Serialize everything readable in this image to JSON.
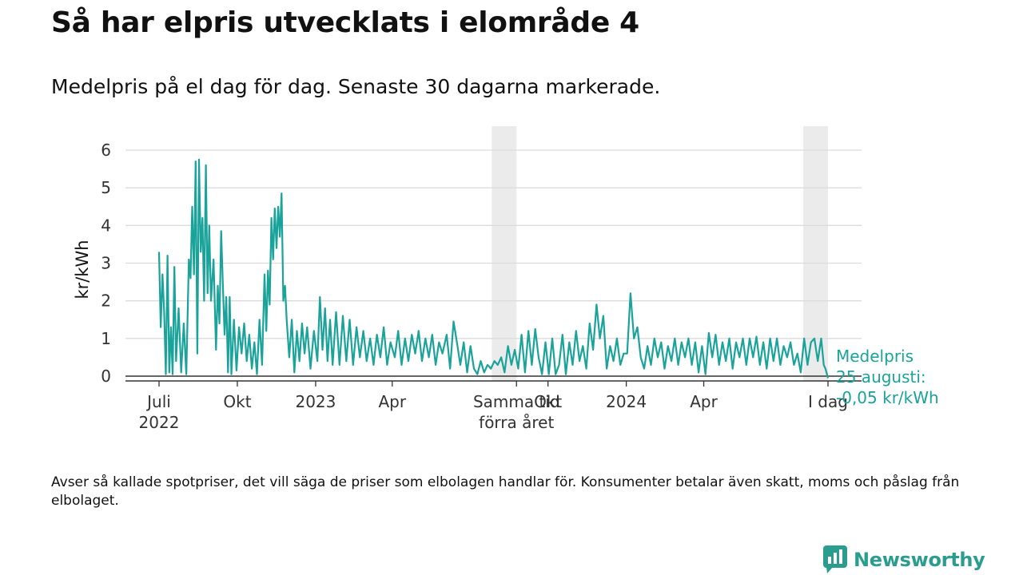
{
  "title": "Så har elpris utvecklats i elområde 4",
  "subtitle": "Medelpris på el dag för dag.  Senaste 30 dagarna markerade.",
  "footnote": "Avser så kallade spotpriser, det vill säga de priser som elbolagen handlar för. Konsumenter betalar även skatt, moms och påslag från elbolaget.",
  "brand": {
    "name": "Newsworthy",
    "color": "#2a9d8f"
  },
  "chart_data": {
    "type": "line",
    "ylabel": "kr/kWh",
    "ylim": [
      0,
      6
    ],
    "yticks": [
      0,
      1,
      2,
      3,
      4,
      5,
      6
    ],
    "grid": true,
    "line_color": "#1aa39a",
    "highlight_color": "#ebebeb",
    "xticks": [
      {
        "x": "2022-07-01",
        "label": "Juli\n2022"
      },
      {
        "x": "2022-10-01",
        "label": "Okt"
      },
      {
        "x": "2023-01-01",
        "label": "2023"
      },
      {
        "x": "2023-04-01",
        "label": "Apr"
      },
      {
        "x": "2023-08-25",
        "label": "Samma tid\nförra året"
      },
      {
        "x": "2023-10-01",
        "label": "Okt"
      },
      {
        "x": "2024-01-01",
        "label": "2024"
      },
      {
        "x": "2024-04-01",
        "label": "Apr"
      },
      {
        "x": "2024-08-25",
        "label": "I dag"
      }
    ],
    "highlights": [
      {
        "from": "2023-07-27",
        "to": "2023-08-25"
      },
      {
        "from": "2024-07-27",
        "to": "2024-08-25"
      }
    ],
    "annotation": {
      "lines": [
        "Medelpris",
        "25 augusti:",
        "-0,05 kr/kWh"
      ],
      "x": "2024-08-25",
      "y": -0.05
    },
    "series": [
      {
        "points": [
          [
            "2022-07-01",
            3.3
          ],
          [
            "2022-07-03",
            1.3
          ],
          [
            "2022-07-05",
            2.7
          ],
          [
            "2022-07-07",
            1.7
          ],
          [
            "2022-07-09",
            0.05
          ],
          [
            "2022-07-11",
            3.2
          ],
          [
            "2022-07-13",
            0.1
          ],
          [
            "2022-07-15",
            1.3
          ],
          [
            "2022-07-17",
            0.05
          ],
          [
            "2022-07-19",
            2.9
          ],
          [
            "2022-07-21",
            0.4
          ],
          [
            "2022-07-24",
            1.8
          ],
          [
            "2022-07-27",
            0.1
          ],
          [
            "2022-07-30",
            1.4
          ],
          [
            "2022-08-02",
            0.05
          ],
          [
            "2022-08-05",
            3.1
          ],
          [
            "2022-08-07",
            2.6
          ],
          [
            "2022-08-09",
            4.5
          ],
          [
            "2022-08-11",
            2.7
          ],
          [
            "2022-08-13",
            5.7
          ],
          [
            "2022-08-15",
            0.6
          ],
          [
            "2022-08-17",
            5.75
          ],
          [
            "2022-08-19",
            3.3
          ],
          [
            "2022-08-21",
            4.2
          ],
          [
            "2022-08-23",
            2.0
          ],
          [
            "2022-08-25",
            5.6
          ],
          [
            "2022-08-27",
            2.2
          ],
          [
            "2022-08-29",
            4.0
          ],
          [
            "2022-08-31",
            2.0
          ],
          [
            "2022-09-03",
            3.1
          ],
          [
            "2022-09-06",
            0.7
          ],
          [
            "2022-09-08",
            2.4
          ],
          [
            "2022-09-10",
            1.4
          ],
          [
            "2022-09-12",
            3.85
          ],
          [
            "2022-09-14",
            2.4
          ],
          [
            "2022-09-16",
            1.1
          ],
          [
            "2022-09-18",
            2.1
          ],
          [
            "2022-09-20",
            0.1
          ],
          [
            "2022-09-22",
            2.1
          ],
          [
            "2022-09-24",
            0.05
          ],
          [
            "2022-09-27",
            1.5
          ],
          [
            "2022-09-30",
            0.15
          ],
          [
            "2022-10-03",
            1.3
          ],
          [
            "2022-10-06",
            0.6
          ],
          [
            "2022-10-09",
            1.4
          ],
          [
            "2022-10-12",
            0.4
          ],
          [
            "2022-10-15",
            1.1
          ],
          [
            "2022-10-18",
            0.2
          ],
          [
            "2022-10-21",
            0.9
          ],
          [
            "2022-10-24",
            0.05
          ],
          [
            "2022-10-27",
            1.5
          ],
          [
            "2022-10-30",
            0.3
          ],
          [
            "2022-11-02",
            2.7
          ],
          [
            "2022-11-04",
            1.2
          ],
          [
            "2022-11-06",
            2.8
          ],
          [
            "2022-11-08",
            1.9
          ],
          [
            "2022-11-10",
            4.2
          ],
          [
            "2022-11-12",
            3.1
          ],
          [
            "2022-11-14",
            4.45
          ],
          [
            "2022-11-16",
            3.4
          ],
          [
            "2022-11-18",
            4.5
          ],
          [
            "2022-11-20",
            3.7
          ],
          [
            "2022-11-22",
            4.85
          ],
          [
            "2022-11-24",
            2.0
          ],
          [
            "2022-11-26",
            2.4
          ],
          [
            "2022-11-28",
            1.5
          ],
          [
            "2022-12-01",
            0.5
          ],
          [
            "2022-12-04",
            1.5
          ],
          [
            "2022-12-07",
            0.1
          ],
          [
            "2022-12-10",
            1.2
          ],
          [
            "2022-12-13",
            0.4
          ],
          [
            "2022-12-16",
            1.4
          ],
          [
            "2022-12-19",
            0.6
          ],
          [
            "2022-12-22",
            1.3
          ],
          [
            "2022-12-26",
            0.2
          ],
          [
            "2022-12-30",
            1.2
          ],
          [
            "2023-01-03",
            0.4
          ],
          [
            "2023-01-06",
            2.1
          ],
          [
            "2023-01-09",
            0.7
          ],
          [
            "2023-01-12",
            1.8
          ],
          [
            "2023-01-15",
            0.4
          ],
          [
            "2023-01-18",
            1.5
          ],
          [
            "2023-01-21",
            0.3
          ],
          [
            "2023-01-25",
            1.7
          ],
          [
            "2023-01-29",
            0.3
          ],
          [
            "2023-02-02",
            1.6
          ],
          [
            "2023-02-06",
            0.4
          ],
          [
            "2023-02-10",
            1.5
          ],
          [
            "2023-02-14",
            0.3
          ],
          [
            "2023-02-18",
            1.3
          ],
          [
            "2023-02-22",
            0.5
          ],
          [
            "2023-02-26",
            1.2
          ],
          [
            "2023-03-02",
            0.4
          ],
          [
            "2023-03-06",
            1.0
          ],
          [
            "2023-03-10",
            0.3
          ],
          [
            "2023-03-14",
            1.1
          ],
          [
            "2023-03-18",
            0.5
          ],
          [
            "2023-03-22",
            1.3
          ],
          [
            "2023-03-26",
            0.3
          ],
          [
            "2023-03-30",
            0.9
          ],
          [
            "2023-04-04",
            0.5
          ],
          [
            "2023-04-08",
            1.2
          ],
          [
            "2023-04-12",
            0.3
          ],
          [
            "2023-04-16",
            1.0
          ],
          [
            "2023-04-20",
            0.4
          ],
          [
            "2023-04-24",
            1.1
          ],
          [
            "2023-04-28",
            0.6
          ],
          [
            "2023-05-02",
            1.2
          ],
          [
            "2023-05-06",
            0.4
          ],
          [
            "2023-05-10",
            1.0
          ],
          [
            "2023-05-14",
            0.5
          ],
          [
            "2023-05-18",
            1.1
          ],
          [
            "2023-05-22",
            0.3
          ],
          [
            "2023-05-26",
            0.9
          ],
          [
            "2023-05-30",
            0.6
          ],
          [
            "2023-06-04",
            1.1
          ],
          [
            "2023-06-08",
            0.2
          ],
          [
            "2023-06-12",
            1.45
          ],
          [
            "2023-06-16",
            0.9
          ],
          [
            "2023-06-20",
            0.3
          ],
          [
            "2023-06-24",
            0.9
          ],
          [
            "2023-06-28",
            0.1
          ],
          [
            "2023-07-02",
            0.8
          ],
          [
            "2023-07-06",
            0.2
          ],
          [
            "2023-07-10",
            0.05
          ],
          [
            "2023-07-14",
            0.4
          ],
          [
            "2023-07-18",
            0.1
          ],
          [
            "2023-07-22",
            0.3
          ],
          [
            "2023-07-26",
            0.2
          ],
          [
            "2023-07-30",
            0.4
          ],
          [
            "2023-08-03",
            0.3
          ],
          [
            "2023-08-07",
            0.5
          ],
          [
            "2023-08-11",
            0.1
          ],
          [
            "2023-08-15",
            0.8
          ],
          [
            "2023-08-19",
            0.3
          ],
          [
            "2023-08-23",
            0.7
          ],
          [
            "2023-08-27",
            0.2
          ],
          [
            "2023-08-31",
            1.1
          ],
          [
            "2023-09-04",
            0.1
          ],
          [
            "2023-09-08",
            1.2
          ],
          [
            "2023-09-12",
            0.3
          ],
          [
            "2023-09-16",
            1.25
          ],
          [
            "2023-09-20",
            0.5
          ],
          [
            "2023-09-24",
            0.05
          ],
          [
            "2023-09-28",
            0.9
          ],
          [
            "2023-10-02",
            0.05
          ],
          [
            "2023-10-06",
            1.0
          ],
          [
            "2023-10-10",
            0.05
          ],
          [
            "2023-10-14",
            0.3
          ],
          [
            "2023-10-18",
            1.1
          ],
          [
            "2023-10-22",
            0.05
          ],
          [
            "2023-10-26",
            0.9
          ],
          [
            "2023-10-30",
            0.3
          ],
          [
            "2023-11-03",
            1.2
          ],
          [
            "2023-11-07",
            0.4
          ],
          [
            "2023-11-11",
            0.8
          ],
          [
            "2023-11-15",
            0.2
          ],
          [
            "2023-11-19",
            1.4
          ],
          [
            "2023-11-23",
            0.7
          ],
          [
            "2023-11-27",
            1.9
          ],
          [
            "2023-12-01",
            1.0
          ],
          [
            "2023-12-05",
            1.6
          ],
          [
            "2023-12-09",
            0.2
          ],
          [
            "2023-12-13",
            0.8
          ],
          [
            "2023-12-17",
            0.4
          ],
          [
            "2023-12-21",
            1.0
          ],
          [
            "2023-12-25",
            0.3
          ],
          [
            "2023-12-29",
            0.6
          ],
          [
            "2024-01-02",
            0.6
          ],
          [
            "2024-01-06",
            2.2
          ],
          [
            "2024-01-10",
            1.0
          ],
          [
            "2024-01-14",
            1.3
          ],
          [
            "2024-01-18",
            0.5
          ],
          [
            "2024-01-22",
            0.2
          ],
          [
            "2024-01-26",
            0.8
          ],
          [
            "2024-01-30",
            0.3
          ],
          [
            "2024-02-03",
            1.0
          ],
          [
            "2024-02-07",
            0.5
          ],
          [
            "2024-02-11",
            0.9
          ],
          [
            "2024-02-15",
            0.2
          ],
          [
            "2024-02-19",
            0.8
          ],
          [
            "2024-02-23",
            0.4
          ],
          [
            "2024-02-27",
            1.0
          ],
          [
            "2024-03-02",
            0.3
          ],
          [
            "2024-03-06",
            0.9
          ],
          [
            "2024-03-10",
            0.5
          ],
          [
            "2024-03-14",
            1.0
          ],
          [
            "2024-03-18",
            0.3
          ],
          [
            "2024-03-22",
            0.9
          ],
          [
            "2024-03-26",
            0.1
          ],
          [
            "2024-03-30",
            0.8
          ],
          [
            "2024-04-03",
            0.05
          ],
          [
            "2024-04-07",
            1.15
          ],
          [
            "2024-04-11",
            0.5
          ],
          [
            "2024-04-15",
            1.1
          ],
          [
            "2024-04-19",
            0.3
          ],
          [
            "2024-04-23",
            0.9
          ],
          [
            "2024-04-27",
            0.4
          ],
          [
            "2024-05-01",
            1.0
          ],
          [
            "2024-05-05",
            0.2
          ],
          [
            "2024-05-09",
            0.9
          ],
          [
            "2024-05-13",
            0.5
          ],
          [
            "2024-05-17",
            1.0
          ],
          [
            "2024-05-21",
            0.3
          ],
          [
            "2024-05-25",
            1.0
          ],
          [
            "2024-05-29",
            0.5
          ],
          [
            "2024-06-02",
            1.05
          ],
          [
            "2024-06-06",
            0.3
          ],
          [
            "2024-06-10",
            0.9
          ],
          [
            "2024-06-14",
            0.2
          ],
          [
            "2024-06-18",
            1.0
          ],
          [
            "2024-06-22",
            0.4
          ],
          [
            "2024-06-26",
            1.0
          ],
          [
            "2024-06-30",
            0.3
          ],
          [
            "2024-07-04",
            0.8
          ],
          [
            "2024-07-08",
            0.5
          ],
          [
            "2024-07-12",
            0.9
          ],
          [
            "2024-07-16",
            0.3
          ],
          [
            "2024-07-20",
            0.6
          ],
          [
            "2024-07-24",
            0.1
          ],
          [
            "2024-07-28",
            1.0
          ],
          [
            "2024-08-01",
            0.3
          ],
          [
            "2024-08-05",
            0.9
          ],
          [
            "2024-08-09",
            1.0
          ],
          [
            "2024-08-13",
            0.4
          ],
          [
            "2024-08-17",
            1.0
          ],
          [
            "2024-08-20",
            0.3
          ],
          [
            "2024-08-22",
            0.2
          ],
          [
            "2024-08-25",
            -0.05
          ]
        ]
      }
    ]
  }
}
